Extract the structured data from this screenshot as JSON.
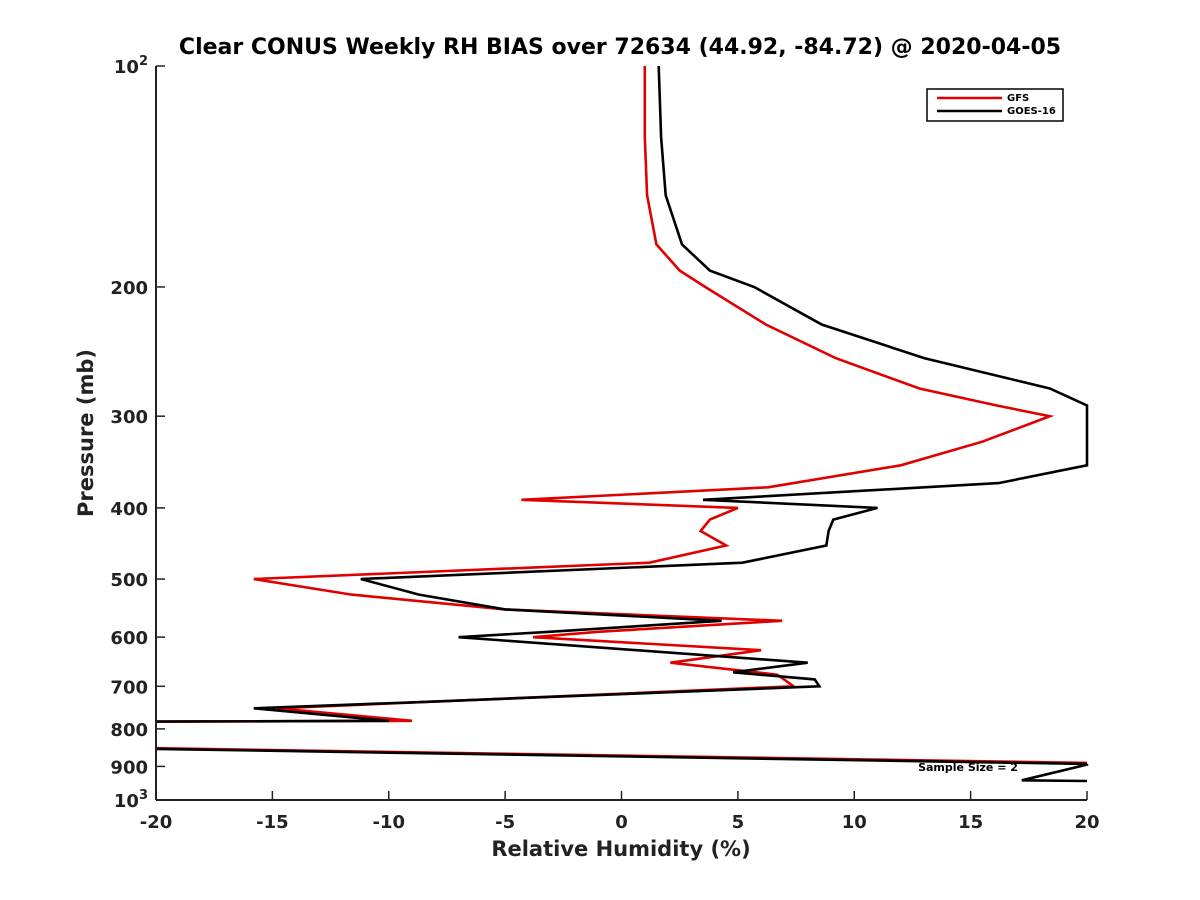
{
  "chart_data": {
    "type": "line",
    "title": "Clear CONUS Weekly RH BIAS over 72634 (44.92, -84.72) @ 2020-04-05",
    "xlabel": "Relative Humidity (%)",
    "ylabel": "Pressure (mb)",
    "xlim": [
      -20,
      20
    ],
    "ylim": [
      100,
      1000
    ],
    "yscale": "log",
    "y_reversed": true,
    "grid": false,
    "legend_position": "top-right",
    "x_ticks": [
      -20,
      -15,
      -10,
      -5,
      0,
      5,
      10,
      15,
      20
    ],
    "x_tick_labels": [
      "-20",
      "-15",
      "-10",
      "-5",
      "0",
      "5",
      "10",
      "15",
      "20"
    ],
    "y_ticks": [
      100,
      200,
      300,
      400,
      500,
      600,
      700,
      800,
      900,
      1000
    ],
    "y_tick_labels": [
      {
        "base": "10",
        "exp": "2"
      },
      {
        "base": "200",
        "exp": ""
      },
      {
        "base": "300",
        "exp": ""
      },
      {
        "base": "400",
        "exp": ""
      },
      {
        "base": "500",
        "exp": ""
      },
      {
        "base": "600",
        "exp": ""
      },
      {
        "base": "700",
        "exp": ""
      },
      {
        "base": "800",
        "exp": ""
      },
      {
        "base": "900",
        "exp": ""
      },
      {
        "base": "10",
        "exp": "3"
      }
    ],
    "annotation": "Sample Size = 2",
    "series": [
      {
        "name": "GFS",
        "color": "#e00000",
        "points": [
          [
            1.0,
            100
          ],
          [
            1.0,
            125
          ],
          [
            1.1,
            150
          ],
          [
            1.5,
            175
          ],
          [
            2.5,
            190
          ],
          [
            3.6,
            200
          ],
          [
            6.2,
            225
          ],
          [
            9.2,
            250
          ],
          [
            12.8,
            275
          ],
          [
            16.1,
            290
          ],
          [
            18.4,
            300
          ],
          [
            15.5,
            325
          ],
          [
            12.0,
            350
          ],
          [
            6.3,
            375
          ],
          [
            -4.3,
            390
          ],
          [
            5.0,
            400
          ],
          [
            3.8,
            415
          ],
          [
            3.4,
            430
          ],
          [
            4.5,
            450
          ],
          [
            1.2,
            475
          ],
          [
            -15.8,
            500
          ],
          [
            -11.6,
            525
          ],
          [
            -5.0,
            550
          ],
          [
            6.9,
            570
          ],
          [
            -1.0,
            590
          ],
          [
            -3.8,
            600
          ],
          [
            6.0,
            625
          ],
          [
            2.1,
            650
          ],
          [
            6.7,
            675
          ],
          [
            7.4,
            700
          ],
          [
            -14.8,
            750
          ],
          [
            -9.0,
            780
          ],
          [
            -20.0,
            782
          ]
        ]
      },
      {
        "name": "GOES-16",
        "color": "#000000",
        "points": [
          [
            1.6,
            100
          ],
          [
            1.7,
            125
          ],
          [
            1.9,
            150
          ],
          [
            2.6,
            175
          ],
          [
            3.8,
            190
          ],
          [
            5.7,
            200
          ],
          [
            8.6,
            225
          ],
          [
            13.0,
            250
          ],
          [
            18.4,
            275
          ],
          [
            20.0,
            290
          ],
          [
            20.0,
            350
          ],
          [
            16.2,
            370
          ],
          [
            3.5,
            390
          ],
          [
            11.0,
            400
          ],
          [
            9.1,
            415
          ],
          [
            8.9,
            430
          ],
          [
            8.8,
            450
          ],
          [
            5.2,
            475
          ],
          [
            -11.2,
            500
          ],
          [
            -8.7,
            525
          ],
          [
            -5.0,
            550
          ],
          [
            4.3,
            570
          ],
          [
            -3.1,
            590
          ],
          [
            -7.0,
            600
          ],
          [
            8.0,
            650
          ],
          [
            4.8,
            670
          ],
          [
            8.3,
            685
          ],
          [
            8.5,
            700
          ],
          [
            -8.5,
            735
          ],
          [
            -15.8,
            750
          ],
          [
            -10.0,
            780
          ],
          [
            -20.0,
            782
          ]
        ]
      }
    ],
    "near_surface_lines": [
      {
        "series": "GFS",
        "points": [
          [
            -20.0,
            850
          ],
          [
            20.0,
            890
          ]
        ]
      },
      {
        "series": "GOES-16",
        "points": [
          [
            -20.0,
            852
          ],
          [
            20.0,
            893
          ]
        ]
      },
      {
        "series": "GOES-16",
        "points": [
          [
            20.0,
            893
          ],
          [
            20.0,
            895
          ],
          [
            17.2,
            940
          ],
          [
            20.0,
            942
          ]
        ]
      }
    ]
  }
}
